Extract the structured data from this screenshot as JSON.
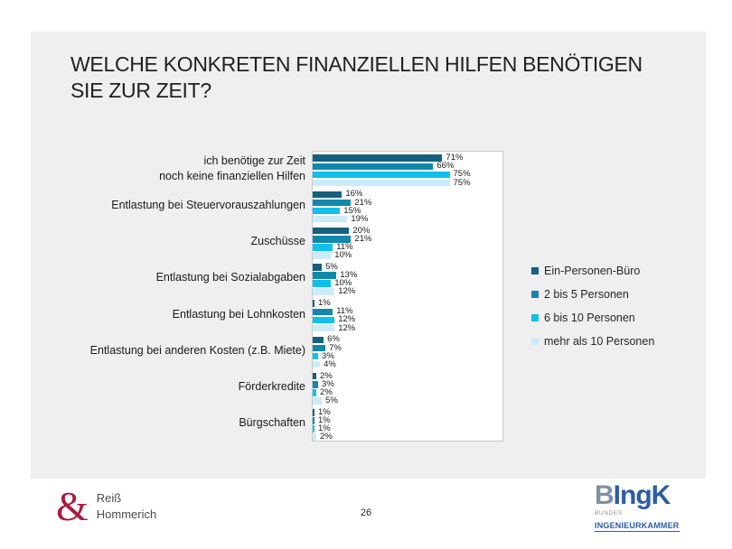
{
  "slide": {
    "title": "WELCHE KONKRETEN FINANZIELLEN HILFEN BENÖTIGEN\nSIE ZUR ZEIT?",
    "page_number": "26"
  },
  "chart_data": {
    "type": "bar",
    "orientation": "horizontal",
    "title": "",
    "xlabel": "",
    "ylabel": "",
    "xlim": [
      0,
      105
    ],
    "grid": false,
    "legend_position": "right",
    "data_labels": true,
    "value_suffix": "%",
    "categories": [
      "ich benötige zur Zeit\nnoch keine finanziellen Hilfen",
      "Entlastung bei Steuervorauszahlungen",
      "Zuschüsse",
      "Entlastung bei Sozialabgaben",
      "Entlastung bei Lohnkosten",
      "Entlastung bei anderen Kosten (z.B. Miete)",
      "Förderkredite",
      "Bürgschaften"
    ],
    "series": [
      {
        "name": "Ein-Personen-Büro",
        "color": "#16607e",
        "values": [
          71,
          16,
          20,
          5,
          1,
          6,
          2,
          1
        ]
      },
      {
        "name": "2 bis 5 Personen",
        "color": "#1187ae",
        "values": [
          66,
          21,
          21,
          13,
          11,
          7,
          3,
          1
        ]
      },
      {
        "name": "6 bis 10 Personen",
        "color": "#10c0ec",
        "values": [
          75,
          15,
          11,
          10,
          12,
          3,
          2,
          1
        ]
      },
      {
        "name": "mehr als 10 Personen",
        "color": "#ccebfa",
        "values": [
          75,
          19,
          10,
          12,
          12,
          4,
          5,
          2
        ]
      }
    ]
  },
  "footer": {
    "left_logo": {
      "ampersand": "&",
      "line1": "Reiß",
      "line2": "Hommerich"
    },
    "right_logo": {
      "wordmark_b": "B",
      "wordmark_ingk": "IngK",
      "sub1": "BUNDES",
      "sub2": "INGENIEURKAMMER"
    }
  },
  "colors": {
    "panel_background": "#efefef",
    "plot_background": "#ffffff",
    "plot_border": "#c9c9c9",
    "text": "#1a1a1a",
    "logo_red": "#ad1a3f",
    "logo_blue": "#2e5ca6",
    "logo_gray_blue": "#7e90a5"
  }
}
